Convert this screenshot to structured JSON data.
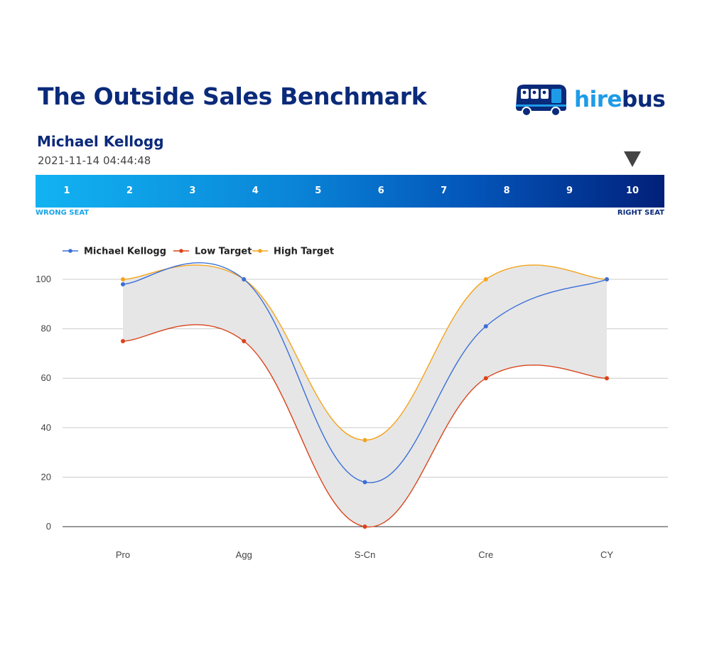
{
  "header": {
    "title": "The Outside Sales Benchmark",
    "logo": {
      "hire": "hire",
      "bus": "bus",
      "icon": "bus-icon"
    }
  },
  "candidate": {
    "name": "Michael Kellogg",
    "timestamp": "2021-11-14 04:44:48"
  },
  "scale": {
    "numbers": [
      "1",
      "2",
      "3",
      "4",
      "5",
      "6",
      "7",
      "8",
      "9",
      "10"
    ],
    "selected": 10,
    "left_label": "WRONG SEAT",
    "right_label": "RIGHT SEAT"
  },
  "chart_data": {
    "type": "line",
    "categories": [
      "Pro",
      "Agg",
      "S-Cn",
      "Cre",
      "CY"
    ],
    "series": [
      {
        "name": "Michael Kellogg",
        "values": [
          98,
          100,
          18,
          81,
          100
        ],
        "color": "#3a6fd8"
      },
      {
        "name": "Low Target",
        "values": [
          75,
          75,
          0,
          60,
          60
        ],
        "color": "#d9441c"
      },
      {
        "name": "High Target",
        "values": [
          100,
          100,
          35,
          100,
          100
        ],
        "color": "#f5a31a"
      }
    ],
    "band_fill": "#e6e6e6",
    "yticks": [
      0,
      20,
      40,
      60,
      80,
      100
    ],
    "ylim": [
      0,
      100
    ],
    "grid": true,
    "legend": "top-left",
    "smooth": true
  }
}
